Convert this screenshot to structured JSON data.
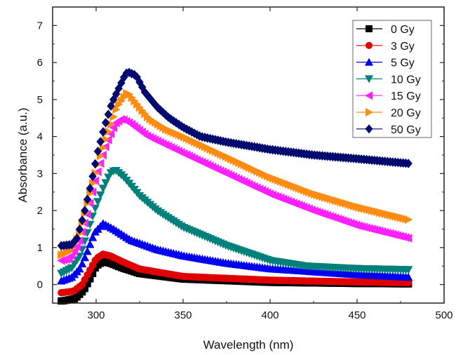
{
  "chart_data": {
    "type": "scatter",
    "title": "",
    "xlabel": "Wavelength (nm)",
    "ylabel": "Absorbance (a.u.)",
    "xlim": [
      275,
      500
    ],
    "ylim": [
      -0.5,
      7.5
    ],
    "xticks": [
      300,
      350,
      400,
      450,
      500
    ],
    "yticks": [
      0,
      1,
      2,
      3,
      4,
      5,
      6,
      7
    ],
    "grid": false,
    "legend_position": "top-right",
    "series": [
      {
        "name": "0 Gy",
        "color": "#000000",
        "marker": "square",
        "points": [
          [
            280,
            -0.45
          ],
          [
            288,
            -0.38
          ],
          [
            293,
            -0.15
          ],
          [
            297,
            0.2
          ],
          [
            300,
            0.5
          ],
          [
            304,
            0.62
          ],
          [
            308,
            0.58
          ],
          [
            315,
            0.45
          ],
          [
            325,
            0.3
          ],
          [
            350,
            0.15
          ],
          [
            400,
            0.06
          ],
          [
            450,
            0.03
          ],
          [
            480,
            0.02
          ]
        ]
      },
      {
        "name": "3 Gy",
        "color": "#e00000",
        "marker": "circle",
        "points": [
          [
            280,
            -0.22
          ],
          [
            287,
            -0.18
          ],
          [
            292,
            0.0
          ],
          [
            296,
            0.35
          ],
          [
            300,
            0.7
          ],
          [
            304,
            0.82
          ],
          [
            308,
            0.78
          ],
          [
            315,
            0.62
          ],
          [
            325,
            0.42
          ],
          [
            350,
            0.22
          ],
          [
            400,
            0.12
          ],
          [
            450,
            0.07
          ],
          [
            480,
            0.05
          ]
        ]
      },
      {
        "name": "5 Gy",
        "color": "#0000ee",
        "marker": "triangle-up",
        "points": [
          [
            280,
            0.1
          ],
          [
            286,
            0.2
          ],
          [
            291,
            0.45
          ],
          [
            295,
            0.9
          ],
          [
            299,
            1.4
          ],
          [
            304,
            1.65
          ],
          [
            310,
            1.5
          ],
          [
            320,
            1.2
          ],
          [
            335,
            0.95
          ],
          [
            350,
            0.78
          ],
          [
            375,
            0.58
          ],
          [
            400,
            0.43
          ],
          [
            450,
            0.27
          ],
          [
            480,
            0.2
          ]
        ]
      },
      {
        "name": "10 Gy",
        "color": "#00807a",
        "marker": "triangle-down",
        "points": [
          [
            280,
            0.3
          ],
          [
            286,
            0.45
          ],
          [
            291,
            0.8
          ],
          [
            295,
            1.4
          ],
          [
            299,
            2.0
          ],
          [
            304,
            2.6
          ],
          [
            308,
            3.0
          ],
          [
            311,
            3.1
          ],
          [
            316,
            2.9
          ],
          [
            325,
            2.4
          ],
          [
            335,
            2.0
          ],
          [
            350,
            1.55
          ],
          [
            375,
            1.05
          ],
          [
            400,
            0.65
          ],
          [
            420,
            0.5
          ],
          [
            450,
            0.43
          ],
          [
            480,
            0.4
          ]
        ]
      },
      {
        "name": "15 Gy",
        "color": "#ff20ff",
        "marker": "triangle-left",
        "points": [
          [
            280,
            0.65
          ],
          [
            285,
            0.7
          ],
          [
            290,
            1.1
          ],
          [
            295,
            1.9
          ],
          [
            300,
            2.9
          ],
          [
            306,
            3.8
          ],
          [
            311,
            4.35
          ],
          [
            315,
            4.48
          ],
          [
            320,
            4.35
          ],
          [
            330,
            4.0
          ],
          [
            350,
            3.55
          ],
          [
            375,
            3.0
          ],
          [
            400,
            2.45
          ],
          [
            425,
            2.0
          ],
          [
            450,
            1.6
          ],
          [
            480,
            1.25
          ]
        ]
      },
      {
        "name": "20 Gy",
        "color": "#ff8c10",
        "marker": "triangle-right",
        "points": [
          [
            280,
            0.8
          ],
          [
            285,
            0.9
          ],
          [
            290,
            1.3
          ],
          [
            295,
            2.2
          ],
          [
            300,
            3.1
          ],
          [
            306,
            4.0
          ],
          [
            312,
            4.8
          ],
          [
            318,
            5.2
          ],
          [
            323,
            4.9
          ],
          [
            330,
            4.5
          ],
          [
            340,
            4.2
          ],
          [
            350,
            4.0
          ],
          [
            375,
            3.45
          ],
          [
            400,
            2.9
          ],
          [
            425,
            2.45
          ],
          [
            450,
            2.1
          ],
          [
            480,
            1.75
          ]
        ]
      },
      {
        "name": "50 Gy",
        "color": "#000a6e",
        "marker": "diamond",
        "points": [
          [
            280,
            1.05
          ],
          [
            286,
            1.08
          ],
          [
            289,
            1.25
          ],
          [
            293,
            1.9
          ],
          [
            297,
            2.7
          ],
          [
            301,
            3.6
          ],
          [
            305,
            4.3
          ],
          [
            309,
            4.9
          ],
          [
            313,
            5.3
          ],
          [
            316,
            5.6
          ],
          [
            318,
            5.75
          ],
          [
            323,
            5.65
          ],
          [
            328,
            5.2
          ],
          [
            335,
            4.8
          ],
          [
            342,
            4.5
          ],
          [
            350,
            4.25
          ],
          [
            360,
            4.0
          ],
          [
            375,
            3.85
          ],
          [
            400,
            3.65
          ],
          [
            425,
            3.5
          ],
          [
            450,
            3.4
          ],
          [
            480,
            3.27
          ]
        ]
      }
    ]
  }
}
